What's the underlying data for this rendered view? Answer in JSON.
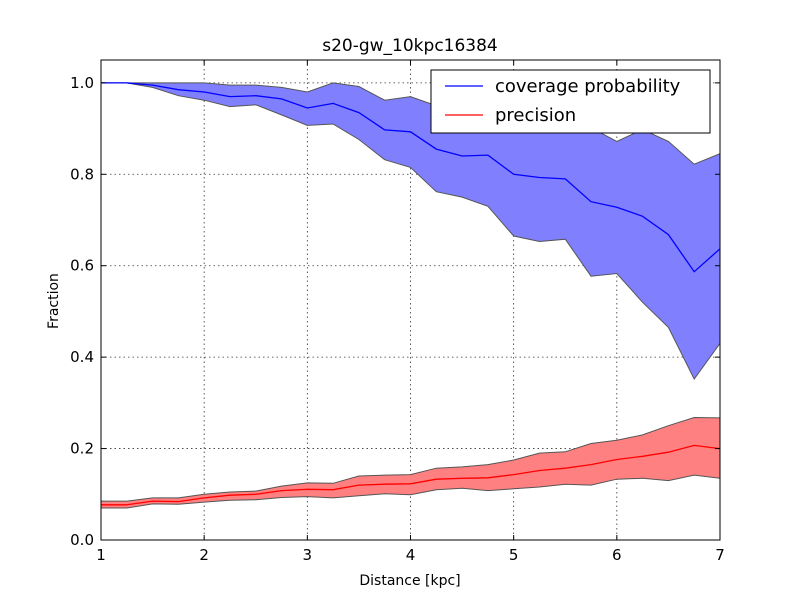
{
  "chart_data": {
    "type": "line",
    "title": "s20-gw_10kpc16384",
    "xlabel": "Distance [kpc]",
    "ylabel": "Fraction",
    "xlim": [
      1,
      7
    ],
    "ylim": [
      0,
      1.05
    ],
    "xticks": [
      1,
      2,
      3,
      4,
      5,
      6,
      7
    ],
    "xtick_labels": [
      "1",
      "2",
      "3",
      "4",
      "5",
      "6",
      "7"
    ],
    "yticks": [
      0,
      0.2,
      0.4,
      0.6,
      0.8,
      1.0
    ],
    "ytick_labels": [
      "0.0",
      "0.2",
      "0.4",
      "0.6",
      "0.8",
      "1.0"
    ],
    "grid": true,
    "legend_position": "upper-right",
    "x": [
      1.0,
      1.25,
      1.5,
      1.75,
      2.0,
      2.25,
      2.5,
      2.75,
      3.0,
      3.25,
      3.5,
      3.75,
      4.0,
      4.25,
      4.5,
      4.75,
      5.0,
      5.25,
      5.5,
      5.75,
      6.0,
      6.25,
      6.5,
      6.75,
      7.0
    ],
    "series": [
      {
        "name": "coverage probability",
        "color": "#0000ff",
        "band_color": "#8080ff",
        "values": [
          1.0,
          1.0,
          0.995,
          0.985,
          0.98,
          0.97,
          0.972,
          0.965,
          0.945,
          0.955,
          0.935,
          0.897,
          0.893,
          0.855,
          0.84,
          0.842,
          0.8,
          0.793,
          0.79,
          0.74,
          0.728,
          0.708,
          0.668,
          0.587,
          0.637
        ],
        "upper": [
          1.0,
          1.0,
          1.0,
          1.0,
          1.0,
          0.995,
          0.995,
          0.99,
          0.98,
          1.0,
          0.992,
          0.962,
          0.97,
          0.95,
          0.945,
          0.94,
          0.925,
          0.922,
          0.918,
          0.902,
          0.872,
          0.898,
          0.872,
          0.822,
          0.845
        ],
        "lower": [
          1.0,
          1.0,
          0.99,
          0.972,
          0.962,
          0.948,
          0.952,
          0.93,
          0.907,
          0.91,
          0.876,
          0.832,
          0.815,
          0.762,
          0.75,
          0.73,
          0.665,
          0.653,
          0.658,
          0.577,
          0.583,
          0.52,
          0.465,
          0.352,
          0.43
        ]
      },
      {
        "name": "precision",
        "color": "#ff0000",
        "band_color": "#ff8080",
        "values": [
          0.077,
          0.077,
          0.085,
          0.084,
          0.092,
          0.098,
          0.1,
          0.108,
          0.111,
          0.11,
          0.12,
          0.122,
          0.123,
          0.133,
          0.135,
          0.136,
          0.143,
          0.152,
          0.157,
          0.165,
          0.176,
          0.183,
          0.192,
          0.207,
          0.2
        ],
        "upper": [
          0.085,
          0.085,
          0.092,
          0.092,
          0.1,
          0.105,
          0.107,
          0.118,
          0.125,
          0.124,
          0.14,
          0.142,
          0.143,
          0.157,
          0.16,
          0.165,
          0.175,
          0.19,
          0.193,
          0.211,
          0.218,
          0.23,
          0.25,
          0.268,
          0.267
        ],
        "lower": [
          0.07,
          0.07,
          0.079,
          0.078,
          0.083,
          0.087,
          0.088,
          0.093,
          0.095,
          0.092,
          0.097,
          0.101,
          0.099,
          0.11,
          0.113,
          0.108,
          0.112,
          0.116,
          0.122,
          0.12,
          0.133,
          0.135,
          0.13,
          0.142,
          0.135
        ]
      }
    ]
  }
}
